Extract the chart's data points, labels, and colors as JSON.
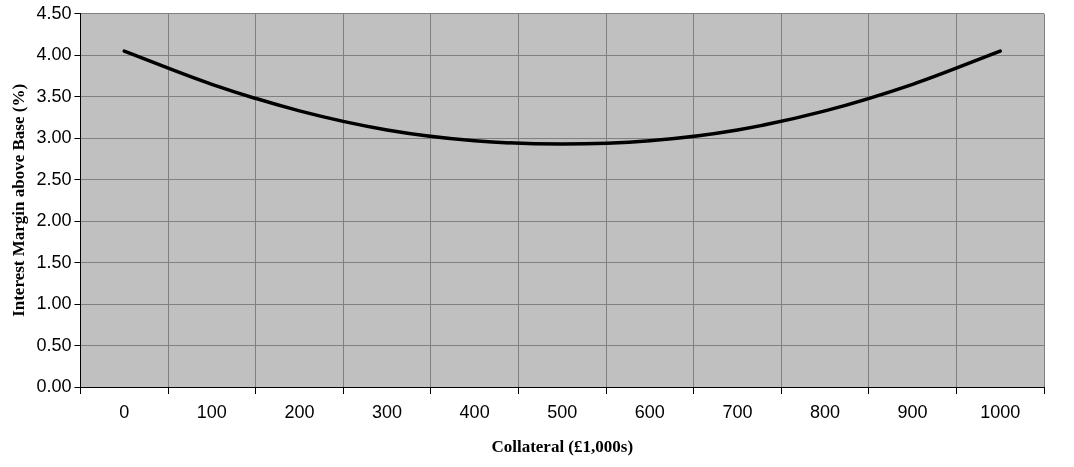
{
  "chart_data": {
    "type": "line",
    "xlabel": "Collateral (£1,000s)",
    "ylabel": "Interest Margin above Base (%)",
    "categories": [
      "0",
      "100",
      "200",
      "300",
      "400",
      "500",
      "600",
      "700",
      "800",
      "900",
      "1000"
    ],
    "series": [
      {
        "color": "#000000",
        "values": [
          4.05,
          3.65,
          3.33,
          3.1,
          2.97,
          2.93,
          2.97,
          3.1,
          3.33,
          3.65,
          4.05
        ]
      }
    ],
    "ylim": [
      0,
      4.5
    ],
    "yticks": [
      {
        "value": 0,
        "label": "0.00"
      },
      {
        "value": 0.5,
        "label": "0.50"
      },
      {
        "value": 1,
        "label": "1.00"
      },
      {
        "value": 1.5,
        "label": "1.50"
      },
      {
        "value": 2,
        "label": "2.00"
      },
      {
        "value": 2.5,
        "label": "2.50"
      },
      {
        "value": 3,
        "label": "3.00"
      },
      {
        "value": 3.5,
        "label": "3.50"
      },
      {
        "value": 4,
        "label": "4.00"
      },
      {
        "value": 4.5,
        "label": "4.50"
      }
    ],
    "grid": true,
    "legend": false,
    "marker": "none",
    "line_style": "solid"
  }
}
